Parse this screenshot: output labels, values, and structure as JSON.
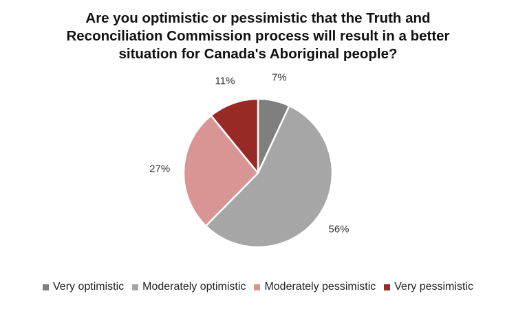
{
  "chart_data": {
    "type": "pie",
    "title": "Are you optimistic or pessimistic that the Truth and Reconciliation Commission process will result in a better situation for Canada's Aboriginal people?",
    "title_lines": [
      "Are you optimistic or pessimistic that the Truth and",
      "Reconciliation Commission process will result in a better",
      "situation for Canada's Aboriginal people?"
    ],
    "slices": [
      {
        "label": "Very optimistic",
        "value": 7,
        "display": "7%",
        "color": "#7f7f7f"
      },
      {
        "label": "Moderately optimistic",
        "value": 56,
        "display": "56%",
        "color": "#a6a6a6"
      },
      {
        "label": "Moderately pessimistic",
        "value": 27,
        "display": "27%",
        "color": "#d99594"
      },
      {
        "label": "Very pessimistic",
        "value": 11,
        "display": "11%",
        "color": "#972a25"
      }
    ],
    "legend_position": "bottom",
    "start_angle_deg": 0,
    "direction": "clockwise"
  }
}
